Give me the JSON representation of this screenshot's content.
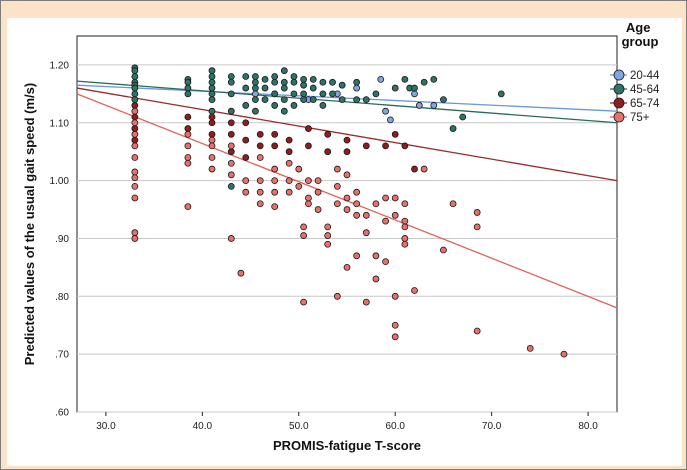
{
  "chart_data": {
    "type": "scatter",
    "xlabel": "PROMIS-fatigue T-score",
    "ylabel": "Predicted values of the usual gait speed (m/s)",
    "xlim": [
      27,
      83
    ],
    "ylim": [
      0.6,
      1.25
    ],
    "x_ticks": [
      "30.0",
      "40.0",
      "50.0",
      "60.0",
      "70.0",
      "80.0"
    ],
    "x_tick_values": [
      30,
      40,
      50,
      60,
      70,
      80
    ],
    "y_ticks": [
      ".60",
      ".70",
      ".80",
      ".90",
      "1.00",
      "1.10",
      "1.20"
    ],
    "y_tick_values": [
      0.6,
      0.7,
      0.8,
      0.9,
      1.0,
      1.1,
      1.2
    ],
    "grid": "horizontal",
    "legend_position": "top-right",
    "legend_title": "Age group",
    "series": [
      {
        "name": "20-44",
        "color": "#7fa6e3",
        "line_color": "#6c97dd",
        "fit": [
          [
            27,
            1.165
          ],
          [
            83,
            1.12
          ]
        ],
        "points": [
          [
            45.5,
            1.15
          ],
          [
            47.5,
            1.15
          ],
          [
            51,
            1.14
          ],
          [
            54,
            1.15
          ],
          [
            56,
            1.16
          ],
          [
            58.5,
            1.175
          ],
          [
            59,
            1.12
          ],
          [
            59.5,
            1.105
          ],
          [
            62,
            1.15
          ],
          [
            62.5,
            1.13
          ],
          [
            64,
            1.13
          ]
        ]
      },
      {
        "name": "45-64",
        "color": "#2e7367",
        "line_color": "#2a6a5e",
        "fit": [
          [
            27,
            1.172
          ],
          [
            83,
            1.1
          ]
        ],
        "points": [
          [
            33,
            1.195
          ],
          [
            33,
            1.19
          ],
          [
            33,
            1.18
          ],
          [
            33,
            1.17
          ],
          [
            33,
            1.165
          ],
          [
            33,
            1.16
          ],
          [
            33,
            1.15
          ],
          [
            33,
            1.14
          ],
          [
            38.5,
            1.175
          ],
          [
            38.5,
            1.17
          ],
          [
            38.5,
            1.16
          ],
          [
            38.5,
            1.15
          ],
          [
            41,
            1.19
          ],
          [
            41,
            1.18
          ],
          [
            41,
            1.17
          ],
          [
            41,
            1.16
          ],
          [
            41,
            1.15
          ],
          [
            41,
            1.14
          ],
          [
            41,
            1.12
          ],
          [
            43,
            1.18
          ],
          [
            43,
            1.17
          ],
          [
            43,
            1.15
          ],
          [
            43,
            1.12
          ],
          [
            43,
            0.99
          ],
          [
            44.5,
            1.18
          ],
          [
            44.5,
            1.16
          ],
          [
            44.5,
            1.13
          ],
          [
            45.5,
            1.18
          ],
          [
            45.5,
            1.17
          ],
          [
            45.5,
            1.16
          ],
          [
            45.5,
            1.14
          ],
          [
            45.5,
            1.12
          ],
          [
            46.5,
            1.175
          ],
          [
            46.5,
            1.16
          ],
          [
            46.5,
            1.14
          ],
          [
            47.5,
            1.18
          ],
          [
            47.5,
            1.17
          ],
          [
            47.5,
            1.15
          ],
          [
            47.5,
            1.13
          ],
          [
            48.5,
            1.19
          ],
          [
            48.5,
            1.17
          ],
          [
            48.5,
            1.16
          ],
          [
            48.5,
            1.14
          ],
          [
            48.5,
            1.12
          ],
          [
            49.5,
            1.18
          ],
          [
            49.5,
            1.17
          ],
          [
            49.5,
            1.15
          ],
          [
            49.5,
            1.13
          ],
          [
            50.5,
            1.175
          ],
          [
            50.5,
            1.165
          ],
          [
            50.5,
            1.15
          ],
          [
            50.5,
            1.14
          ],
          [
            51.5,
            1.175
          ],
          [
            51.5,
            1.16
          ],
          [
            51.5,
            1.14
          ],
          [
            52.5,
            1.17
          ],
          [
            52.5,
            1.15
          ],
          [
            52.5,
            1.13
          ],
          [
            53.5,
            1.17
          ],
          [
            53.5,
            1.15
          ],
          [
            54.5,
            1.165
          ],
          [
            54.5,
            1.14
          ],
          [
            56,
            1.17
          ],
          [
            56,
            1.14
          ],
          [
            57,
            1.14
          ],
          [
            58,
            1.15
          ],
          [
            60,
            1.16
          ],
          [
            61,
            1.175
          ],
          [
            61.5,
            1.16
          ],
          [
            62,
            1.16
          ],
          [
            63,
            1.17
          ],
          [
            64,
            1.175
          ],
          [
            65,
            1.14
          ],
          [
            66,
            1.09
          ],
          [
            67,
            1.11
          ],
          [
            71,
            1.15
          ]
        ]
      },
      {
        "name": "65-74",
        "color": "#8f1d1d",
        "line_color": "#9a2b2b",
        "fit": [
          [
            27,
            1.16
          ],
          [
            83,
            1.0
          ]
        ],
        "points": [
          [
            33,
            1.13
          ],
          [
            33,
            1.11
          ],
          [
            33,
            1.09
          ],
          [
            33,
            1.07
          ],
          [
            38.5,
            1.11
          ],
          [
            38.5,
            1.09
          ],
          [
            41,
            1.11
          ],
          [
            41,
            1.1
          ],
          [
            41,
            1.08
          ],
          [
            43,
            1.1
          ],
          [
            43,
            1.08
          ],
          [
            43,
            1.05
          ],
          [
            44.5,
            1.1
          ],
          [
            44.5,
            1.07
          ],
          [
            44.5,
            1.04
          ],
          [
            46,
            1.08
          ],
          [
            46,
            1.06
          ],
          [
            47.5,
            1.08
          ],
          [
            47.5,
            1.06
          ],
          [
            49,
            1.07
          ],
          [
            49,
            1.05
          ],
          [
            51,
            1.09
          ],
          [
            51,
            1.06
          ],
          [
            53,
            1.08
          ],
          [
            53,
            1.05
          ],
          [
            55,
            1.07
          ],
          [
            55,
            1.05
          ],
          [
            57,
            1.06
          ],
          [
            59,
            1.06
          ],
          [
            60,
            1.08
          ],
          [
            61,
            1.06
          ],
          [
            62,
            1.02
          ]
        ]
      },
      {
        "name": "75+",
        "color": "#e8706b",
        "line_color": "#e0625c",
        "fit": [
          [
            27,
            1.15
          ],
          [
            83,
            0.78
          ]
        ],
        "points": [
          [
            33,
            1.12
          ],
          [
            33,
            1.1
          ],
          [
            33,
            1.08
          ],
          [
            33,
            1.06
          ],
          [
            33,
            1.04
          ],
          [
            33,
            1.015
          ],
          [
            33,
            1.005
          ],
          [
            33,
            0.99
          ],
          [
            33,
            0.97
          ],
          [
            33,
            0.91
          ],
          [
            33,
            0.9
          ],
          [
            38.5,
            1.08
          ],
          [
            38.5,
            1.06
          ],
          [
            38.5,
            1.04
          ],
          [
            38.5,
            1.03
          ],
          [
            38.5,
            0.955
          ],
          [
            41,
            1.07
          ],
          [
            41,
            1.06
          ],
          [
            41,
            1.04
          ],
          [
            41,
            1.02
          ],
          [
            43,
            1.06
          ],
          [
            43,
            1.03
          ],
          [
            43,
            1.01
          ],
          [
            43,
            0.9
          ],
          [
            44,
            0.84
          ],
          [
            44.5,
            1.0
          ],
          [
            44.5,
            0.98
          ],
          [
            46,
            1.04
          ],
          [
            46,
            1.0
          ],
          [
            46,
            0.98
          ],
          [
            46,
            0.96
          ],
          [
            47.5,
            1.02
          ],
          [
            47.5,
            1.0
          ],
          [
            47.5,
            0.98
          ],
          [
            47.5,
            0.955
          ],
          [
            49,
            1.03
          ],
          [
            49,
            1.0
          ],
          [
            49,
            0.98
          ],
          [
            50,
            1.02
          ],
          [
            50,
            0.99
          ],
          [
            50.5,
            0.92
          ],
          [
            50.5,
            0.905
          ],
          [
            50.5,
            0.79
          ],
          [
            51,
            1.0
          ],
          [
            51,
            0.97
          ],
          [
            51,
            0.96
          ],
          [
            52,
            1.0
          ],
          [
            52,
            0.98
          ],
          [
            52,
            0.95
          ],
          [
            53,
            0.92
          ],
          [
            53,
            0.905
          ],
          [
            53,
            0.89
          ],
          [
            54,
            1.02
          ],
          [
            54,
            0.99
          ],
          [
            54,
            0.96
          ],
          [
            54,
            0.8
          ],
          [
            55,
            1.01
          ],
          [
            55,
            0.97
          ],
          [
            55,
            0.95
          ],
          [
            55,
            0.85
          ],
          [
            56,
            0.98
          ],
          [
            56,
            0.96
          ],
          [
            56,
            0.94
          ],
          [
            56,
            0.87
          ],
          [
            57,
            0.94
          ],
          [
            57,
            0.91
          ],
          [
            57,
            0.79
          ],
          [
            58,
            0.96
          ],
          [
            58,
            0.87
          ],
          [
            58,
            0.83
          ],
          [
            59,
            0.97
          ],
          [
            59,
            0.93
          ],
          [
            59,
            0.86
          ],
          [
            60,
            0.97
          ],
          [
            60,
            0.94
          ],
          [
            60,
            0.8
          ],
          [
            60,
            0.75
          ],
          [
            60,
            0.73
          ],
          [
            61,
            0.96
          ],
          [
            61,
            0.93
          ],
          [
            61,
            0.92
          ],
          [
            61,
            0.9
          ],
          [
            61,
            0.89
          ],
          [
            62,
            0.81
          ],
          [
            63,
            1.02
          ],
          [
            65,
            0.88
          ],
          [
            66,
            0.96
          ],
          [
            68.5,
            0.945
          ],
          [
            68.5,
            0.92
          ],
          [
            68.5,
            0.74
          ],
          [
            74,
            0.71
          ],
          [
            77.5,
            0.7
          ]
        ]
      }
    ]
  }
}
